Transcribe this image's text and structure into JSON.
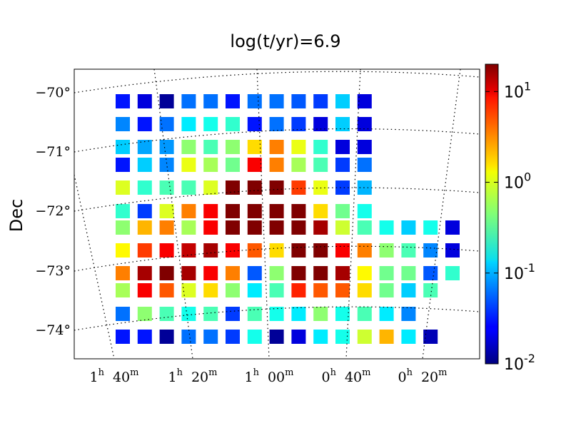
{
  "chart_data": {
    "type": "heatmap",
    "title": "log(t/yr)=6.9",
    "ylabel": "Dec",
    "xlabel": "",
    "x_tick_labels": [
      {
        "h": "1",
        "m": "40"
      },
      {
        "h": "1",
        "m": "20"
      },
      {
        "h": "1",
        "m": "00"
      },
      {
        "h": "0",
        "m": "40"
      },
      {
        "h": "0",
        "m": "20"
      }
    ],
    "y_tick_labels": [
      "−70°",
      "−71°",
      "−72°",
      "−73°",
      "−74°"
    ],
    "colorbar": {
      "scale": "log",
      "range": [
        0.01,
        20
      ],
      "tick_labels": [
        {
          "base": "10",
          "exp": "1",
          "value": 10
        },
        {
          "base": "10",
          "exp": "0",
          "value": 1
        },
        {
          "base": "10",
          "exp": "-1",
          "value": 0.1
        },
        {
          "base": "10",
          "exp": "-2",
          "value": 0.01
        }
      ],
      "colormap": "jet"
    },
    "grid": "dotted",
    "rows": [
      [
        0.03,
        0.02,
        0.012,
        0.06,
        0.06,
        0.03,
        0.06,
        0.06,
        0.05,
        0.04,
        0.12,
        0.02
      ],
      [
        0.07,
        0.03,
        0.06,
        0.15,
        0.2,
        0.25,
        0.03,
        0.06,
        0.04,
        0.02,
        0.12,
        0.02
      ],
      [
        0.12,
        0.09,
        0.08,
        0.5,
        0.3,
        0.5,
        1.5,
        3.0,
        1.0,
        0.25,
        0.02,
        0.02
      ],
      [
        0.03,
        0.12,
        0.07,
        1.0,
        0.6,
        0.4,
        8.0,
        3.0,
        0.6,
        0.3,
        0.04,
        0.06
      ],
      [
        0.9,
        0.25,
        0.3,
        0.3,
        0.9,
        20,
        20,
        20,
        5.0,
        1.0,
        0.04,
        0.1
      ],
      [
        0.25,
        0.04,
        0.9,
        3.0,
        8.0,
        20,
        20,
        20,
        20,
        1.5,
        0.4,
        0.2
      ],
      [
        0.5,
        2.0,
        3.0,
        0.6,
        8.0,
        20,
        20,
        20,
        20,
        15,
        0.8,
        0.3,
        0.2,
        0.12,
        0.2,
        0.02
      ],
      [
        1.2,
        5.0,
        8.0,
        12,
        15,
        8.0,
        4.0,
        1.5,
        20,
        20,
        8.0,
        3.0,
        0.5,
        0.3,
        0.07,
        0.02
      ],
      [
        3.0,
        15,
        20,
        15,
        8.0,
        3.0,
        0.05,
        0.5,
        20,
        20,
        15,
        1.2,
        0.4,
        0.4,
        0.05,
        0.25
      ],
      [
        0.6,
        8.0,
        4.0,
        0.9,
        1.5,
        0.5,
        0.15,
        0.3,
        6.0,
        4.0,
        4.0,
        1.5,
        0.4,
        0.12,
        0.3
      ],
      [
        0.06,
        0.5,
        0.3,
        0.2,
        0.3,
        0.04,
        0.3,
        0.2,
        0.15,
        0.5,
        0.2,
        0.3,
        0.15,
        0.07
      ],
      [
        0.03,
        0.03,
        0.012,
        0.06,
        0.06,
        0.04,
        0.2,
        0.012,
        0.02,
        0.15,
        0.2,
        0.8,
        2.0,
        0.15,
        0.015
      ]
    ]
  }
}
